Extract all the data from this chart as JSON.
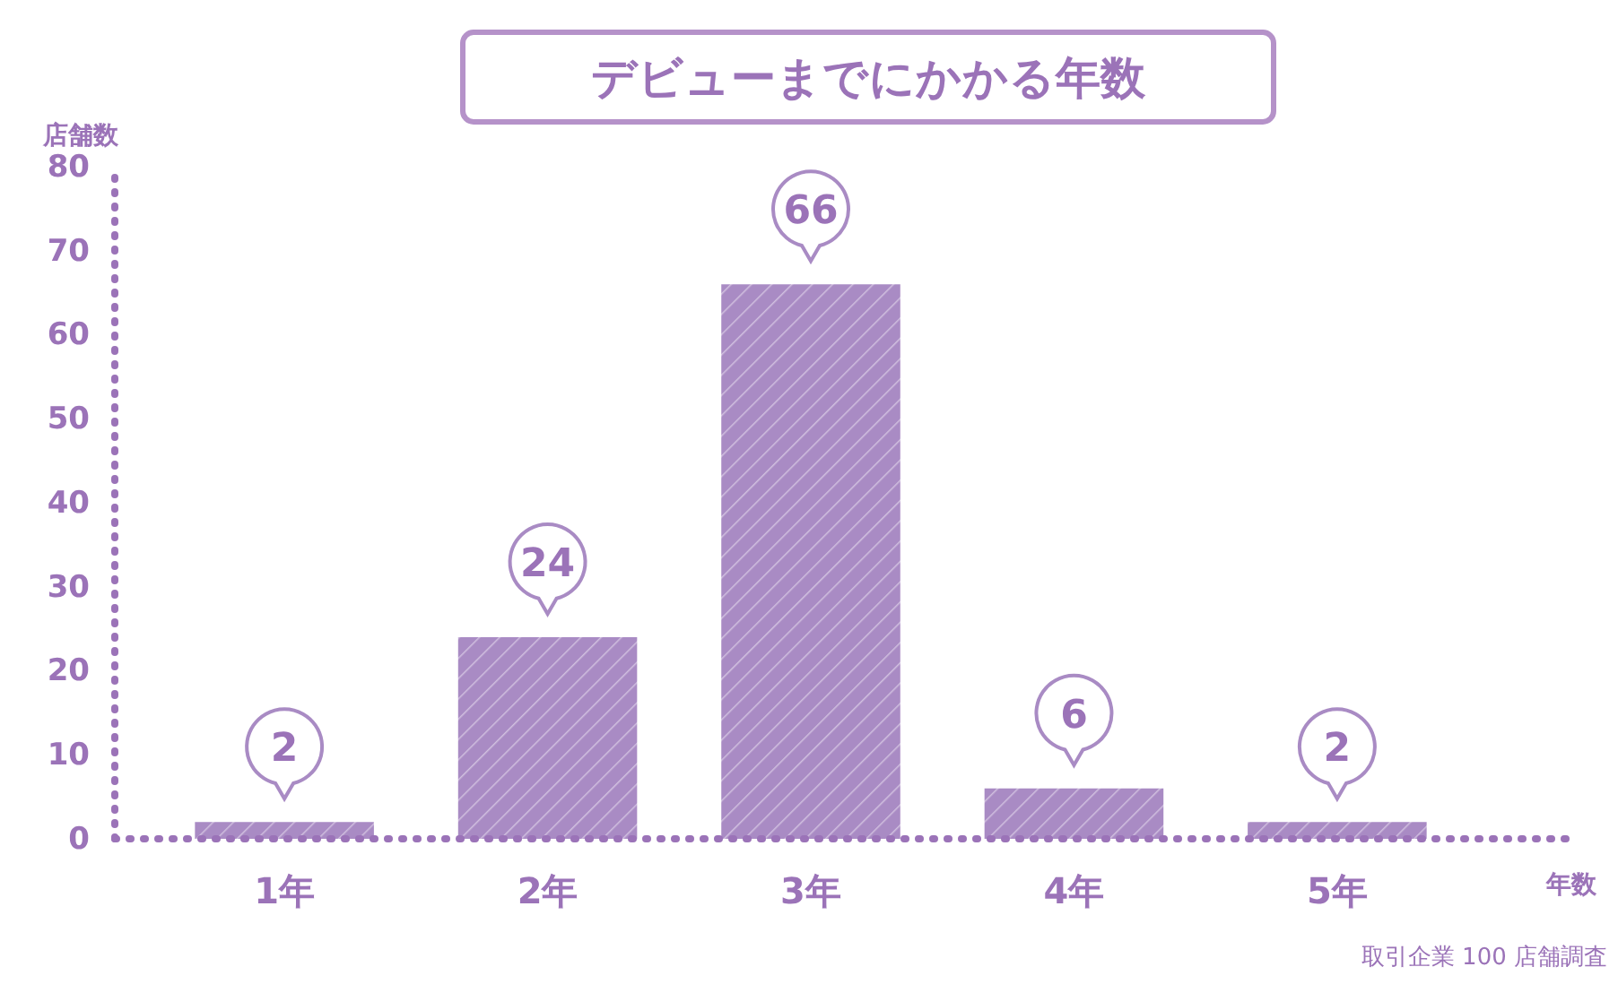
{
  "chart_data": {
    "type": "bar",
    "title": "デビューまでにかかる年数",
    "xlabel": "年数",
    "ylabel": "店舗数",
    "categories": [
      "1年",
      "2年",
      "3年",
      "4年",
      "5年"
    ],
    "values": [
      2,
      24,
      66,
      6,
      2
    ],
    "color": "#a98bc4",
    "ylim": [
      0,
      80
    ],
    "yticks": [
      0,
      10,
      20,
      30,
      40,
      50,
      60,
      70,
      80
    ],
    "data_labels": true,
    "annotations": [
      "取引企業 100 店舗調査"
    ]
  }
}
